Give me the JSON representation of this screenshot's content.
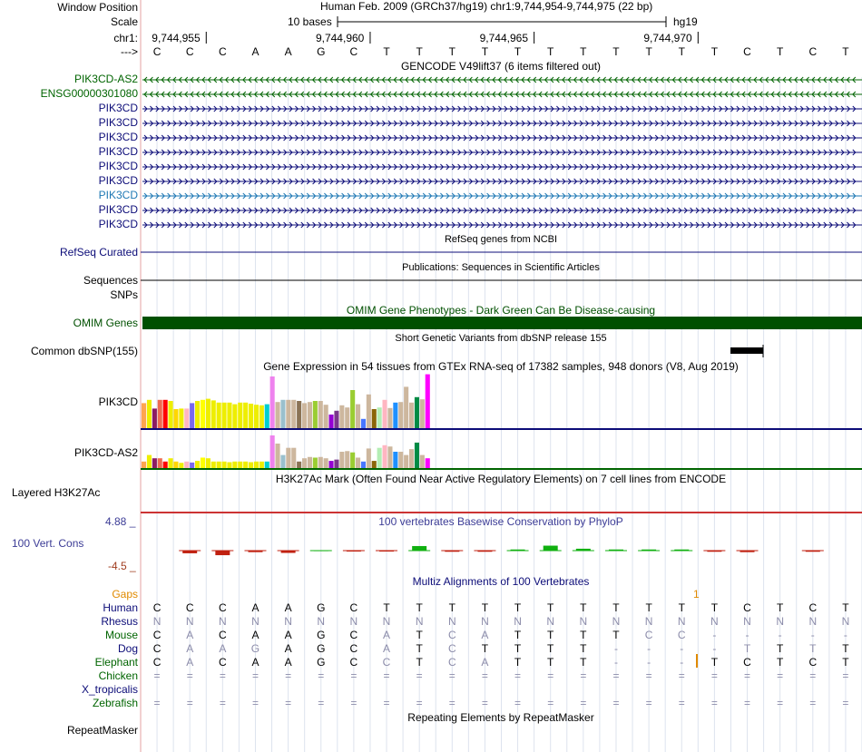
{
  "ruler": {
    "window_position_label": "Window Position",
    "scale_label": "Scale",
    "chrom_label": "chr1:",
    "arrow_label": "--->",
    "assembly_text": "Human Feb. 2009 (GRCh37/hg19)   chr1:9,744,954-9,744,975 (22 bp)",
    "scale_text": "10 bases",
    "assembly_short": "hg19",
    "positions": [
      "9,744,955",
      "9,744,960",
      "9,744,965",
      "9,744,970"
    ],
    "bases": [
      "C",
      "C",
      "C",
      "A",
      "A",
      "G",
      "C",
      "T",
      "T",
      "T",
      "T",
      "T",
      "T",
      "T",
      "T",
      "T",
      "T",
      "T",
      "C",
      "T",
      "C",
      "T"
    ]
  },
  "gencode": {
    "title": "GENCODE V49lift37 (6 items filtered out)",
    "rows": [
      {
        "label": "PIK3CD-AS2",
        "color": "#006400",
        "strand": "-"
      },
      {
        "label": "ENSG00000301080",
        "color": "#006400",
        "strand": "-"
      },
      {
        "label": "PIK3CD",
        "color": "#0c0c78",
        "strand": "+"
      },
      {
        "label": "PIK3CD",
        "color": "#0c0c78",
        "strand": "+"
      },
      {
        "label": "PIK3CD",
        "color": "#0c0c78",
        "strand": "+"
      },
      {
        "label": "PIK3CD",
        "color": "#0c0c78",
        "strand": "+"
      },
      {
        "label": "PIK3CD",
        "color": "#0c0c78",
        "strand": "+"
      },
      {
        "label": "PIK3CD",
        "color": "#0c0c78",
        "strand": "+"
      },
      {
        "label": "PIK3CD",
        "color": "#1e78b4",
        "strand": "+"
      },
      {
        "label": "PIK3CD",
        "color": "#0c0c78",
        "strand": "+"
      },
      {
        "label": "PIK3CD",
        "color": "#0c0c78",
        "strand": "+"
      }
    ]
  },
  "refseq": {
    "title": "RefSeq genes from NCBI",
    "label": "RefSeq Curated"
  },
  "publications": {
    "title": "Publications: Sequences in Scientific Articles",
    "label": "Sequences"
  },
  "snps_label": "SNPs",
  "omim": {
    "title": "OMIM Gene Phenotypes - Dark Green Can Be Disease-causing",
    "label": "OMIM Genes",
    "color": "#005000"
  },
  "dbsnp": {
    "title": "Short Genetic Variants from dbSNP release 155",
    "label": "Common dbSNP(155)"
  },
  "gtex": {
    "title": "Gene Expression in 54 tissues from GTEx RNA-seq of 17382 samples, 948 donors (V8, Aug 2019)",
    "genes": [
      {
        "label": "PIK3CD",
        "axis_color": "#0c0c78",
        "values": [
          0.46,
          0.52,
          0.36,
          0.52,
          0.52,
          0.5,
          0.35,
          0.36,
          0.36,
          0.46,
          0.5,
          0.52,
          0.54,
          0.51,
          0.47,
          0.47,
          0.47,
          0.44,
          0.47,
          0.47,
          0.45,
          0.43,
          0.42,
          0.44,
          0.95,
          0.48,
          0.52,
          0.52,
          0.52,
          0.5,
          0.46,
          0.48,
          0.5,
          0.5,
          0.43,
          0.25,
          0.32,
          0.42,
          0.38,
          0.7,
          0.44,
          0.17,
          0.62,
          0.35,
          0.38,
          0.52,
          0.37,
          0.47,
          0.48,
          0.76,
          0.47,
          0.57,
          0.53,
          0.99
        ]
      },
      {
        "label": "PIK3CD-AS2",
        "axis_color": "#006400",
        "values": [
          0.2,
          0.4,
          0.3,
          0.3,
          0.2,
          0.3,
          0.2,
          0.16,
          0.2,
          0.17,
          0.22,
          0.32,
          0.3,
          0.2,
          0.2,
          0.2,
          0.18,
          0.2,
          0.2,
          0.2,
          0.18,
          0.2,
          0.2,
          0.2,
          1.0,
          0.75,
          0.4,
          0.62,
          0.62,
          0.2,
          0.3,
          0.34,
          0.32,
          0.34,
          0.3,
          0.22,
          0.26,
          0.5,
          0.52,
          0.48,
          0.32,
          0.2,
          0.6,
          0.22,
          0.62,
          0.7,
          0.66,
          0.5,
          0.5,
          0.4,
          0.58,
          0.78,
          0.4,
          0.3
        ]
      }
    ],
    "colors": [
      "#FFA54F",
      "#EEEE00",
      "#8B1C62",
      "#EE6A50",
      "#FF0000",
      "#EEEE00",
      "#FFD700",
      "#EEEE00",
      "#FFB6C1",
      "#7A67EE",
      "#EEEE00",
      "#FFFF00",
      "#EEEE00",
      "#EEEE00",
      "#EEEE00",
      "#EEEE00",
      "#EEEE00",
      "#EEEE00",
      "#EEEE00",
      "#EEEE00",
      "#EEEE00",
      "#EEEE00",
      "#EEEE00",
      "#00CED1",
      "#EE82EE",
      "#CDB79E",
      "#9AC0CD",
      "#CDB79E",
      "#CDB79E",
      "#8B7355",
      "#CDB79E",
      "#CDB79E",
      "#9ACD32",
      "#CDB79E",
      "#CDB79E",
      "#9400D3",
      "#7A378B",
      "#CDB79E",
      "#CDB79E",
      "#9ACD32",
      "#CDB79E",
      "#4876FF",
      "#CDB79E",
      "#8B6508",
      "#B4EEB4",
      "#FFB6C1",
      "#CDB79E",
      "#1E90FF",
      "#CDB79E",
      "#CDB79E",
      "#CDB79E",
      "#008B45",
      "#CDB79E",
      "#FF00FF"
    ]
  },
  "h3k27ac": {
    "title": "H3K27Ac Mark (Often Found Near Active Regulatory Elements) on 7 cell lines from ENCODE",
    "label": "Layered H3K27Ac",
    "line_color": "#cc3333"
  },
  "phylop": {
    "title": "100 vertebrates Basewise Conservation by PhyloP",
    "label": "100 Vert. Cons",
    "max_label": "4.88 _",
    "min_label": "-4.5 _",
    "ylim": [
      -4.5,
      4.88
    ],
    "values": [
      0,
      -0.7,
      -1.2,
      -0.4,
      -0.6,
      0.1,
      -0.2,
      -0.2,
      1.2,
      -0.3,
      -0.3,
      0.3,
      1.3,
      0.5,
      0.3,
      0.3,
      0.3,
      -0.3,
      -0.4,
      0,
      -0.3,
      0
    ]
  },
  "multiz": {
    "title": "Multiz Alignments of 100 Vertebrates",
    "gaps_label": "Gaps",
    "gap_mark": "1",
    "species": [
      {
        "name": "Human",
        "color": "#0c0c78",
        "row": [
          "C",
          "C",
          "C",
          "A",
          "A",
          "G",
          "C",
          "T",
          "T",
          "T",
          "T",
          "T",
          "T",
          "T",
          "T",
          "T",
          "T",
          "T",
          "C",
          "T",
          "C",
          "T"
        ]
      },
      {
        "name": "Rhesus",
        "color": "#0c0c78",
        "row": [
          "N",
          "N",
          "N",
          "N",
          "N",
          "N",
          "N",
          "N",
          "N",
          "N",
          "N",
          "N",
          "N",
          "N",
          "N",
          "N",
          "N",
          "N",
          "N",
          "N",
          "N",
          "N"
        ]
      },
      {
        "name": "Mouse",
        "color": "#006400",
        "row": [
          "C",
          "A",
          "C",
          "A",
          "A",
          "G",
          "C",
          "A",
          "T",
          "C",
          "A",
          "T",
          "T",
          "T",
          "T",
          "C",
          "C",
          "-",
          "-",
          "-",
          "-",
          "-"
        ]
      },
      {
        "name": "Dog",
        "color": "#0c0c78",
        "row": [
          "C",
          "A",
          "A",
          "G",
          "A",
          "G",
          "C",
          "A",
          "T",
          "C",
          "T",
          "T",
          "T",
          "T",
          "-",
          "-",
          "-",
          "-",
          "T",
          "T",
          "T",
          "T"
        ]
      },
      {
        "name": "Elephant",
        "color": "#006400",
        "row": [
          "C",
          "A",
          "C",
          "A",
          "A",
          "G",
          "C",
          "C",
          "T",
          "C",
          "A",
          "T",
          "T",
          "T",
          "-",
          "-",
          "-",
          "T",
          "C",
          "T",
          "C",
          "T"
        ]
      },
      {
        "name": "Chicken",
        "color": "#006400",
        "row": [
          "=",
          "=",
          "=",
          "=",
          "=",
          "=",
          "=",
          "=",
          "=",
          "=",
          "=",
          "=",
          "=",
          "=",
          "=",
          "=",
          "=",
          "=",
          "=",
          "=",
          "=",
          "="
        ]
      },
      {
        "name": "X_tropicalis",
        "color": "#0c0c78",
        "row": [
          "",
          "",
          "",
          "",
          "",
          "",
          "",
          "",
          "",
          "",
          "",
          "",
          "",
          "",
          "",
          "",
          "",
          "",
          "",
          "",
          "",
          ""
        ]
      },
      {
        "name": "Zebrafish",
        "color": "#006400",
        "row": [
          "=",
          "=",
          "=",
          "=",
          "=",
          "=",
          "=",
          "=",
          "=",
          "=",
          "=",
          "=",
          "=",
          "=",
          "=",
          "=",
          "=",
          "=",
          "=",
          "=",
          "=",
          "="
        ]
      }
    ]
  },
  "repeatmasker": {
    "title": "Repeating Elements by RepeatMasker",
    "label": "RepeatMasker"
  }
}
